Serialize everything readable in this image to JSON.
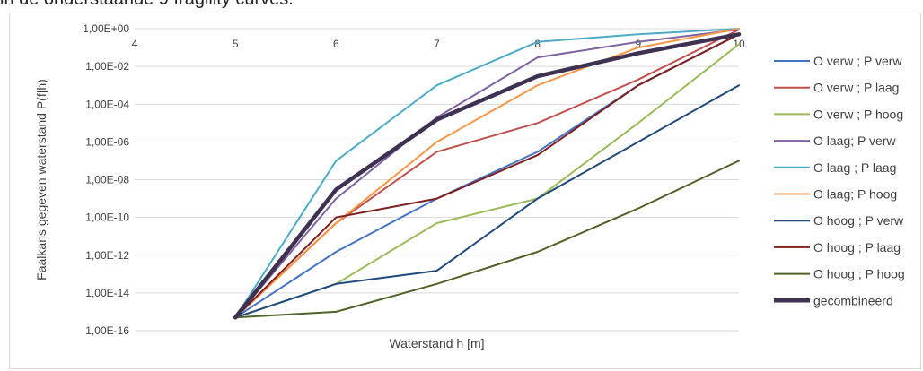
{
  "caption": "in de onderstaande 9 fragility curves.",
  "chart_data": {
    "type": "line",
    "title": "",
    "xlabel": "Waterstand h [m]",
    "ylabel": "Faalkans gegeven waterstand P(f|h)",
    "x": [
      4,
      5,
      6,
      7,
      8,
      9,
      10
    ],
    "x_tick_labels": [
      "4",
      "5",
      "6",
      "7",
      "8",
      "9",
      "10"
    ],
    "ylim": [
      1e-16,
      1
    ],
    "y_scale": "log",
    "y_tick_values": [
      1e-16,
      1e-14,
      1e-12,
      1e-10,
      1e-08,
      1e-06,
      0.0001,
      0.01,
      1
    ],
    "y_tick_labels": [
      "1,00E-16",
      "1,00E-14",
      "1,00E-12",
      "1,00E-10",
      "1,00E-08",
      "1,00E-06",
      "1,00E-04",
      "1,00E-02",
      "1,00E+00"
    ],
    "grid": "horizontal",
    "legend_position": "right",
    "series": [
      {
        "name": "O verw ; P verw",
        "color": "#4472c4",
        "width": 2,
        "x": [
          5,
          6,
          7,
          8,
          9,
          10
        ],
        "values": [
          5e-16,
          1.5e-12,
          1e-09,
          3e-07,
          0.001,
          0.5
        ]
      },
      {
        "name": "O verw ; P laag",
        "color": "#c0504d",
        "width": 2,
        "x": [
          5,
          6,
          7,
          8,
          9,
          10
        ],
        "values": [
          5e-16,
          5e-11,
          3e-07,
          1e-05,
          0.002,
          0.9
        ]
      },
      {
        "name": "O verw ; P hoog",
        "color": "#9bbb59",
        "width": 2,
        "x": [
          5,
          6,
          7,
          8,
          9,
          10
        ],
        "values": [
          5e-16,
          3e-14,
          5e-11,
          1e-09,
          1e-05,
          0.15
        ]
      },
      {
        "name": "O laag; P verw",
        "color": "#8064a2",
        "width": 2,
        "x": [
          5,
          6,
          7,
          8,
          9,
          10
        ],
        "values": [
          5e-16,
          1e-09,
          2e-05,
          0.03,
          0.2,
          0.9
        ]
      },
      {
        "name": "O laag ; P laag",
        "color": "#4bacc6",
        "width": 2,
        "x": [
          5,
          6,
          7,
          8,
          9,
          10
        ],
        "values": [
          5e-16,
          1e-07,
          0.001,
          0.2,
          0.5,
          1.0
        ]
      },
      {
        "name": "O laag; P hoog",
        "color": "#f79646",
        "width": 2,
        "x": [
          5,
          6,
          7,
          8,
          9,
          10
        ],
        "values": [
          5e-16,
          5e-11,
          1e-06,
          0.001,
          0.1,
          1.0
        ]
      },
      {
        "name": "O hoog ;  P verw",
        "color": "#1f497d",
        "width": 2,
        "x": [
          5,
          6,
          7,
          8,
          9,
          10
        ],
        "values": [
          5e-16,
          3e-14,
          1.5e-13,
          1e-09,
          1e-06,
          0.001
        ]
      },
      {
        "name": "O hoog ; P laag",
        "color": "#7f2020",
        "width": 2,
        "x": [
          5,
          6,
          7,
          8,
          9,
          10
        ],
        "values": [
          5e-16,
          1e-10,
          1e-09,
          2e-07,
          0.001,
          0.5
        ]
      },
      {
        "name": "O hoog ; P hoog",
        "color": "#4f6228",
        "width": 2,
        "x": [
          5,
          6,
          7,
          8,
          9,
          10
        ],
        "values": [
          5e-16,
          1e-15,
          3e-14,
          1.5e-12,
          3e-10,
          1e-07
        ]
      },
      {
        "name": "gecombineerd",
        "color": "#3f3151",
        "width": 4.5,
        "x": [
          5,
          6,
          7,
          8,
          9,
          10
        ],
        "values": [
          5e-16,
          3e-09,
          1.5e-05,
          0.003,
          0.05,
          0.5
        ]
      }
    ]
  }
}
